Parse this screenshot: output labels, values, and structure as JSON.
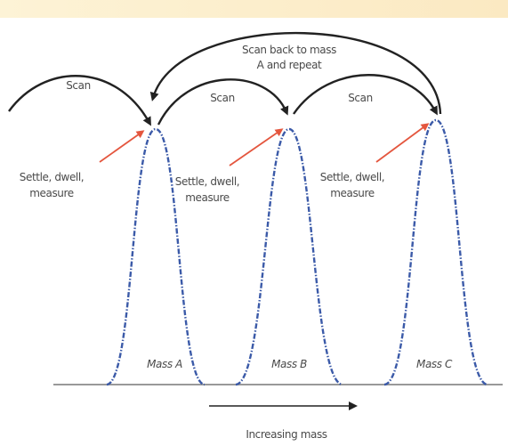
{
  "scan_labels": [
    "Scan",
    "Scan",
    "Scan"
  ],
  "scan_back": [
    "Scan back to mass",
    "A and repeat"
  ],
  "peaks": [
    {
      "label": "Mass A",
      "note": [
        "Settle, dwell,",
        "measure"
      ]
    },
    {
      "label": "Mass B",
      "note": [
        "Settle, dwell,",
        "measure"
      ]
    },
    {
      "label": "Mass C",
      "note": [
        "Settle, dwell,",
        "measure"
      ]
    }
  ],
  "axis_label": "Increasing mass"
}
